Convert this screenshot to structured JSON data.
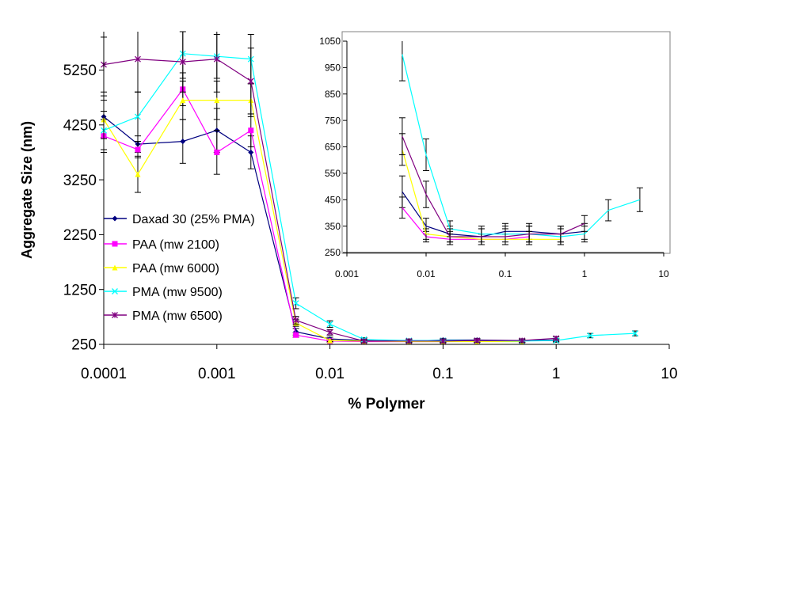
{
  "chart_data": [
    {
      "type": "line",
      "title": "",
      "xlabel": "% Polymer",
      "ylabel": "Aggregate Size (nm)",
      "x_scale": "log",
      "xlim": [
        0.0001,
        10
      ],
      "ylim": [
        250,
        5950
      ],
      "x_tick_labels": [
        "0.0001",
        "0.001",
        "0.01",
        "0.1",
        "1",
        "10"
      ],
      "y_tick_labels": [
        "250",
        "1250",
        "2250",
        "3250",
        "4250",
        "5250"
      ],
      "legend_position": "left-center",
      "series": [
        {
          "name": "Daxad 30 (25% PMA)",
          "color": "#000080",
          "marker": "diamond",
          "x": [
            0.0001,
            0.0002,
            0.0005,
            0.001,
            0.002,
            0.005,
            0.01,
            0.02,
            0.05,
            0.1,
            0.2,
            0.5,
            1
          ],
          "y": [
            4400,
            3900,
            3950,
            4150,
            3750,
            480,
            350,
            320,
            310,
            330,
            330,
            320,
            330
          ],
          "err": [
            380,
            150,
            400,
            400,
            300,
            60,
            30,
            30,
            30,
            30,
            30,
            30,
            30
          ]
        },
        {
          "name": "PAA (mw 2100)",
          "color": "#FF00FF",
          "marker": "square",
          "x": [
            0.0001,
            0.0002,
            0.0005,
            0.001,
            0.002,
            0.005,
            0.01,
            0.02,
            0.05,
            0.1,
            0.2
          ],
          "y": [
            4050,
            3800,
            4900,
            3750,
            4150,
            420,
            310,
            300,
            300,
            300,
            310
          ],
          "err": [
            300,
            150,
            300,
            400,
            300,
            40,
            20,
            20,
            20,
            20,
            20
          ]
        },
        {
          "name": "PAA (mw 6000)",
          "color": "#FFFF00",
          "marker": "triangle",
          "x": [
            0.0001,
            0.0002,
            0.0005,
            0.001,
            0.002,
            0.005,
            0.01,
            0.02,
            0.05,
            0.1,
            0.2,
            0.5
          ],
          "y": [
            4350,
            3350,
            4700,
            4700,
            4700,
            640,
            320,
            310,
            300,
            300,
            300,
            300
          ],
          "err": [
            350,
            330,
            350,
            350,
            300,
            60,
            20,
            20,
            20,
            20,
            20,
            20
          ]
        },
        {
          "name": "PMA (mw 9500)",
          "color": "#00FFFF",
          "marker": "x",
          "x": [
            0.0001,
            0.0002,
            0.0005,
            0.001,
            0.002,
            0.005,
            0.01,
            0.02,
            0.05,
            0.1,
            0.2,
            0.5,
            1,
            2,
            5
          ],
          "y": [
            4150,
            4400,
            5550,
            5500,
            5450,
            1000,
            620,
            340,
            320,
            320,
            320,
            310,
            320,
            410,
            450
          ],
          "err": [
            350,
            450,
            450,
            400,
            450,
            100,
            60,
            30,
            30,
            30,
            30,
            30,
            30,
            40,
            45
          ]
        },
        {
          "name": "PMA (mw 6500)",
          "color": "#800080",
          "marker": "star",
          "x": [
            0.0001,
            0.0002,
            0.0005,
            0.001,
            0.002,
            0.005,
            0.01,
            0.02,
            0.05,
            0.1,
            0.2,
            0.5,
            1
          ],
          "y": [
            5350,
            5450,
            5400,
            5450,
            5050,
            690,
            470,
            310,
            310,
            310,
            320,
            320,
            360
          ],
          "err": [
            500,
            600,
            550,
            600,
            600,
            70,
            50,
            30,
            30,
            30,
            30,
            30,
            30
          ]
        }
      ]
    },
    {
      "type": "line",
      "title": "",
      "xlabel": "",
      "ylabel": "",
      "x_scale": "log",
      "xlim": [
        0.001,
        10
      ],
      "ylim": [
        250,
        1050
      ],
      "x_tick_labels": [
        "0.001",
        "0.01",
        "0.1",
        "1",
        "10"
      ],
      "y_tick_labels": [
        "250",
        "350",
        "450",
        "550",
        "650",
        "750",
        "850",
        "950",
        "1050"
      ],
      "series_note": "inset enlarges the same five series as the main chart (x ≥ 0.005)"
    }
  ]
}
